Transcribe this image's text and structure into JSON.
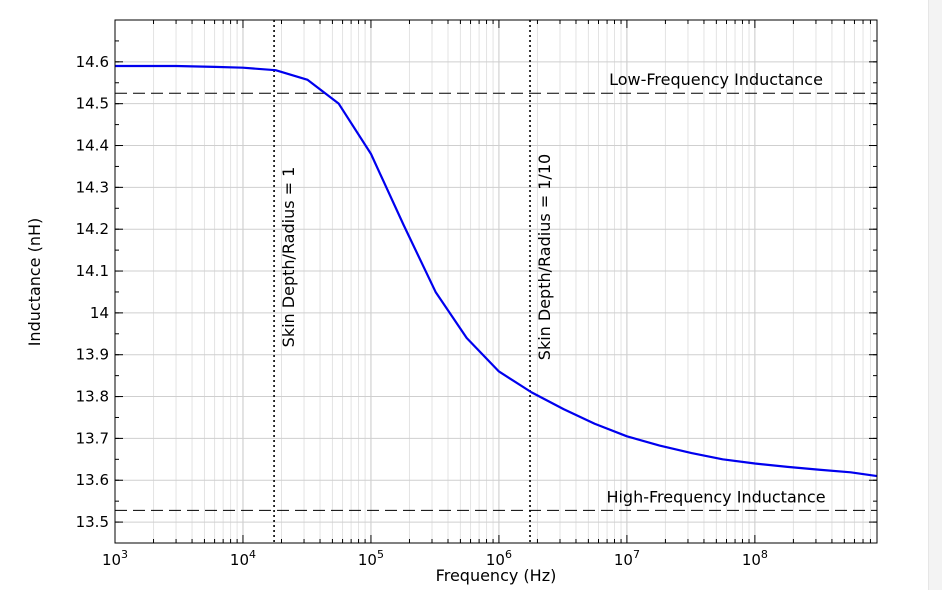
{
  "chart_data": {
    "type": "line",
    "title": "",
    "xlabel": "Frequency (Hz)",
    "ylabel": "Inductance (nH)",
    "xscale": "log",
    "xlim": [
      1000,
      900000000
    ],
    "ylim": [
      13.45,
      14.7
    ],
    "grid": true,
    "xticks": [
      {
        "value": 1000,
        "mantissa": "10",
        "exponent": "3"
      },
      {
        "value": 10000,
        "mantissa": "10",
        "exponent": "4"
      },
      {
        "value": 100000,
        "mantissa": "10",
        "exponent": "5"
      },
      {
        "value": 1000000,
        "mantissa": "10",
        "exponent": "6"
      },
      {
        "value": 10000000,
        "mantissa": "10",
        "exponent": "7"
      },
      {
        "value": 100000000,
        "mantissa": "10",
        "exponent": "8"
      }
    ],
    "yticks": [
      {
        "value": 13.5,
        "label": "13.5"
      },
      {
        "value": 13.6,
        "label": "13.6"
      },
      {
        "value": 13.7,
        "label": "13.7"
      },
      {
        "value": 13.8,
        "label": "13.8"
      },
      {
        "value": 13.9,
        "label": "13.9"
      },
      {
        "value": 14.0,
        "label": "14"
      },
      {
        "value": 14.1,
        "label": "14.1"
      },
      {
        "value": 14.2,
        "label": "14.2"
      },
      {
        "value": 14.3,
        "label": "14.3"
      },
      {
        "value": 14.4,
        "label": "14.4"
      },
      {
        "value": 14.5,
        "label": "14.5"
      },
      {
        "value": 14.6,
        "label": "14.6"
      }
    ],
    "series": [
      {
        "name": "Inductance",
        "color": "#0000ee",
        "x": [
          1000,
          3000,
          6000,
          10000,
          18000,
          32000,
          56000,
          100000,
          180000,
          320000,
          560000,
          1000000,
          1800000,
          3200000,
          5600000,
          10000000,
          18000000,
          32000000,
          56000000,
          100000000,
          180000000,
          320000000,
          560000000,
          900000000
        ],
        "y": [
          14.59,
          14.59,
          14.588,
          14.586,
          14.58,
          14.557,
          14.5,
          14.38,
          14.21,
          14.05,
          13.94,
          13.86,
          13.81,
          13.77,
          13.735,
          13.705,
          13.683,
          13.665,
          13.65,
          13.64,
          13.632,
          13.625,
          13.619,
          13.61
        ]
      }
    ],
    "reference_lines": [
      {
        "name": "low-frequency-inductance",
        "orientation": "horizontal",
        "value": 14.525,
        "style": "dashed",
        "label": "Low-Frequency Inductance"
      },
      {
        "name": "high-frequency-inductance",
        "orientation": "horizontal",
        "value": 13.528,
        "style": "dashed",
        "label": "High-Frequency Inductance"
      },
      {
        "name": "skin-depth-1",
        "orientation": "vertical",
        "value": 17500,
        "style": "dotted",
        "label": "Skin Depth/Radius = 1"
      },
      {
        "name": "skin-depth-1-10",
        "orientation": "vertical",
        "value": 1750000,
        "style": "dotted",
        "label": "Skin Depth/Radius = 1/10"
      }
    ]
  }
}
